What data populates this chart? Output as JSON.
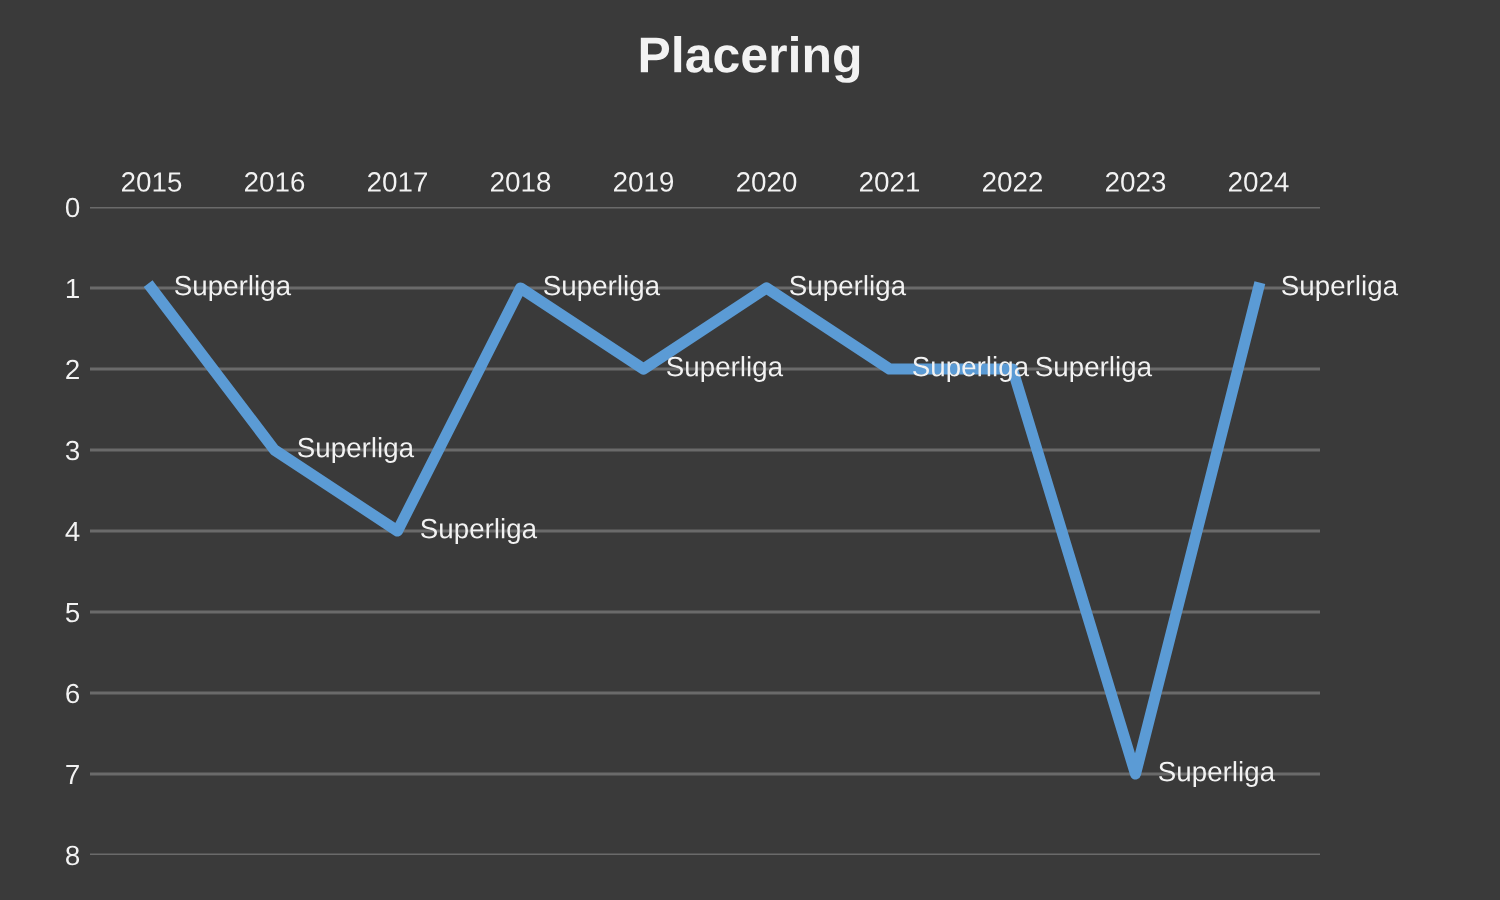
{
  "chart_data": {
    "type": "line",
    "title": "Placering",
    "categories": [
      "2015",
      "2016",
      "2017",
      "2018",
      "2019",
      "2020",
      "2021",
      "2022",
      "2023",
      "2024"
    ],
    "series": [
      {
        "color": "#5b9bd5",
        "values": [
          1,
          3,
          4,
          1,
          2,
          1,
          2,
          2,
          7,
          1
        ],
        "value_labels": [
          "Superliga",
          "Superliga",
          "Superliga",
          "Superliga",
          "Superliga",
          "Superliga",
          "Superliga",
          "Superliga",
          "Superliga",
          "Superliga"
        ]
      }
    ],
    "ylim": [
      8,
      0
    ],
    "yticks": [
      0,
      1,
      2,
      3,
      4,
      5,
      6,
      7,
      8
    ],
    "grid": "y",
    "marker": "none",
    "line_style": "solid"
  }
}
